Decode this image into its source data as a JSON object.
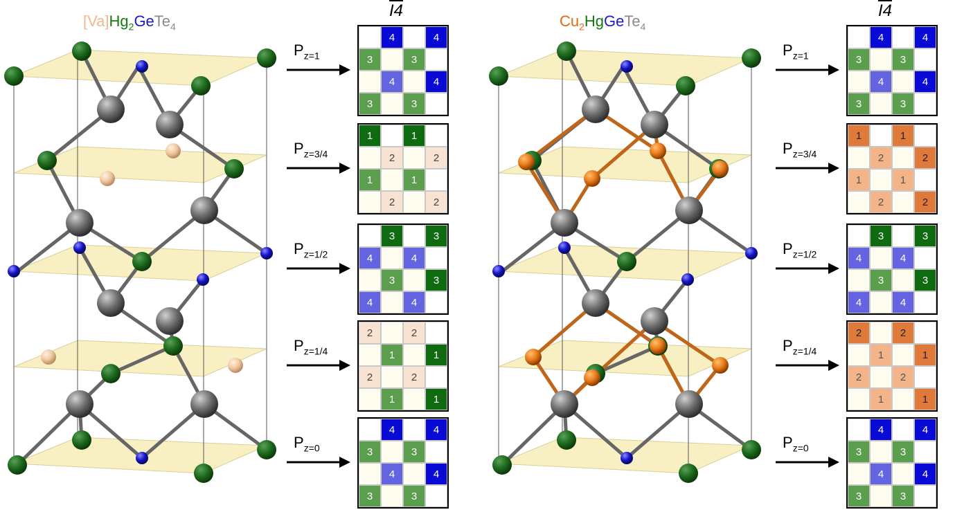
{
  "colors": {
    "green_atom": "#1e6b1e",
    "gray_atom": "#707070",
    "blue_atom": "#1414c8",
    "peach_atom": "#f0c8a0",
    "orange_atom": "#e87a1a",
    "plane_fill": "#f7edb8",
    "vacancy_text": "#f0b890",
    "cu_text": "#e06a10",
    "hg_text": "#137a13",
    "ge_text": "#1a1ad0",
    "te_text": "#8a8a8a",
    "cell_4_dark": "#0a0ad6",
    "cell_4_light": "#6464e0",
    "cell_3": "#5a9e4e",
    "cell_1": "#0f6b10",
    "cell_1_light": "#f0c8a0",
    "cell_2_light": "#f8e2d2",
    "cell_2_dark": "#e07a3a",
    "cell_empty": "#ffffff",
    "cell_blank_light": "#fffcf0"
  },
  "left": {
    "title": {
      "va": "[Va]",
      "hg": "Hg",
      "hg_sub": "2",
      "ge": "Ge",
      "te": "Te",
      "te_sub": "4"
    },
    "space_group": "I4",
    "planes": [
      {
        "label": "P",
        "sub": "z=1",
        "cells": [
          [
            "e",
            "4",
            "e",
            "4"
          ],
          [
            "3",
            "b",
            "3",
            "e"
          ],
          [
            "b",
            "4",
            "b",
            "4"
          ],
          [
            "3",
            "b",
            "3",
            "e"
          ]
        ]
      },
      {
        "label": "P",
        "sub": "z=3/4",
        "cells": [
          [
            "1",
            "e",
            "1",
            "e"
          ],
          [
            "b",
            "2",
            "b",
            "2"
          ],
          [
            "1",
            "b",
            "1",
            "e"
          ],
          [
            "b",
            "2",
            "b",
            "2"
          ]
        ]
      },
      {
        "label": "P",
        "sub": "z=1/2",
        "cells": [
          [
            "e",
            "3",
            "e",
            "3"
          ],
          [
            "4",
            "b",
            "4",
            "e"
          ],
          [
            "b",
            "3",
            "b",
            "3"
          ],
          [
            "4",
            "b",
            "4",
            "e"
          ]
        ]
      },
      {
        "label": "P",
        "sub": "z=1/4",
        "cells": [
          [
            "2",
            "b",
            "2",
            "e"
          ],
          [
            "b",
            "1",
            "b",
            "1"
          ],
          [
            "2",
            "b",
            "2",
            "e"
          ],
          [
            "b",
            "1",
            "b",
            "1"
          ]
        ]
      },
      {
        "label": "P",
        "sub": "z=0",
        "cells": [
          [
            "e",
            "4",
            "e",
            "4"
          ],
          [
            "3",
            "b",
            "3",
            "e"
          ],
          [
            "b",
            "4",
            "b",
            "4"
          ],
          [
            "3",
            "b",
            "3",
            "e"
          ]
        ]
      }
    ]
  },
  "right": {
    "title": {
      "cu": "Cu",
      "cu_sub": "2",
      "hg": "Hg",
      "ge": "Ge",
      "te": "Te",
      "te_sub": "4"
    },
    "space_group": "I4",
    "planes": [
      {
        "label": "P",
        "sub": "z=1",
        "cells": [
          [
            "e",
            "4",
            "e",
            "4"
          ],
          [
            "3",
            "b",
            "3",
            "e"
          ],
          [
            "b",
            "4",
            "b",
            "4"
          ],
          [
            "3",
            "b",
            "3",
            "e"
          ]
        ]
      },
      {
        "label": "P",
        "sub": "z=3/4",
        "cells": [
          [
            "1",
            "e",
            "1",
            "e"
          ],
          [
            "b",
            "2",
            "b",
            "2"
          ],
          [
            "1",
            "b",
            "1",
            "e"
          ],
          [
            "b",
            "2",
            "b",
            "2"
          ]
        ]
      },
      {
        "label": "P",
        "sub": "z=1/2",
        "cells": [
          [
            "e",
            "3",
            "e",
            "3"
          ],
          [
            "4",
            "b",
            "4",
            "e"
          ],
          [
            "b",
            "3",
            "b",
            "3"
          ],
          [
            "4",
            "b",
            "4",
            "e"
          ]
        ]
      },
      {
        "label": "P",
        "sub": "z=1/4",
        "cells": [
          [
            "2",
            "b",
            "2",
            "e"
          ],
          [
            "b",
            "1",
            "b",
            "1"
          ],
          [
            "2",
            "b",
            "2",
            "e"
          ],
          [
            "b",
            "1",
            "b",
            "1"
          ]
        ]
      },
      {
        "label": "P",
        "sub": "z=0",
        "cells": [
          [
            "e",
            "4",
            "e",
            "4"
          ],
          [
            "3",
            "b",
            "3",
            "e"
          ],
          [
            "b",
            "4",
            "b",
            "4"
          ],
          [
            "3",
            "b",
            "3",
            "e"
          ]
        ]
      }
    ]
  }
}
